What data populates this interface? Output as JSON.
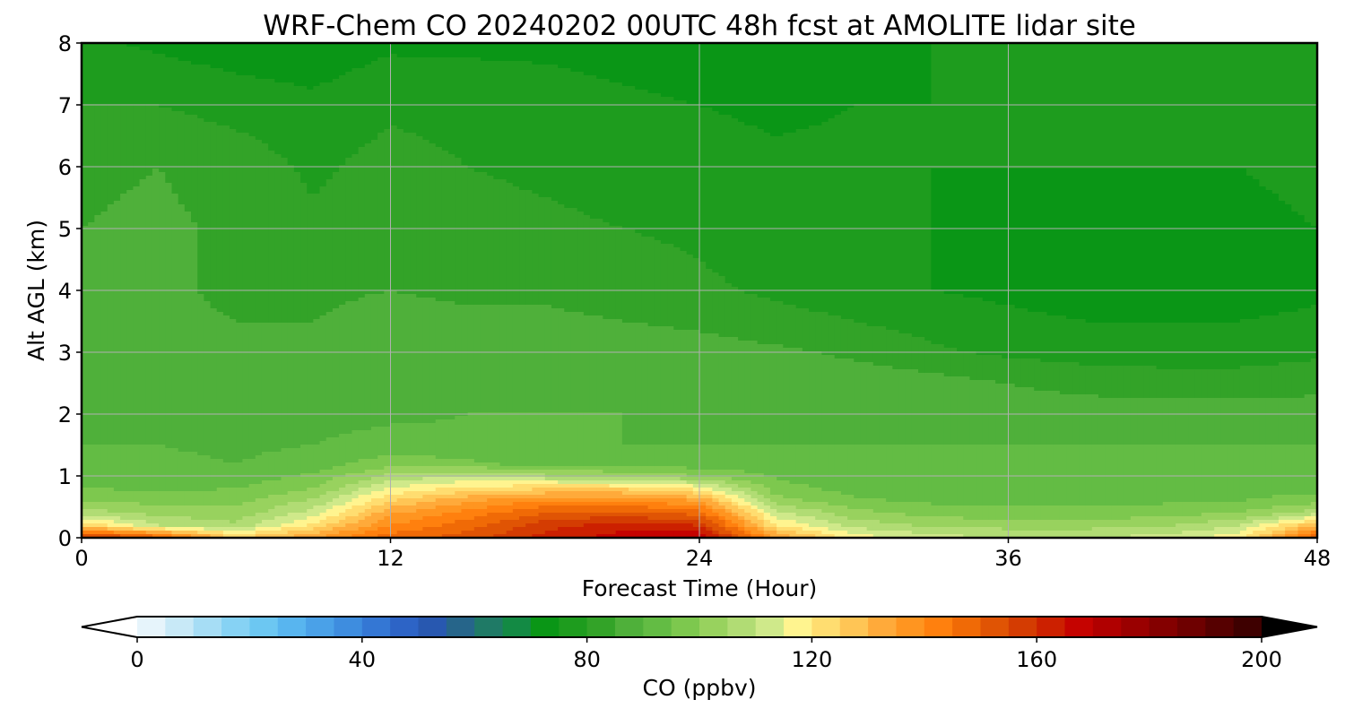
{
  "chart_data": {
    "type": "heatmap",
    "subtype": "filled-contour",
    "title": "WRF-Chem CO  20240202 00UTC 48h fcst at AMOLITE lidar site",
    "xlabel": "Forecast Time (Hour)",
    "ylabel": "Alt AGL (km)",
    "xlim": [
      0,
      48
    ],
    "ylim": [
      0,
      8
    ],
    "x_ticks": [
      0,
      12,
      24,
      36,
      48
    ],
    "y_ticks": [
      0,
      1,
      2,
      3,
      4,
      5,
      6,
      7,
      8
    ],
    "grid": true,
    "colorbar": {
      "label": "CO  (ppbv)",
      "orientation": "horizontal",
      "location": "bottom",
      "range": [
        0,
        200
      ],
      "ticks": [
        0,
        40,
        80,
        120,
        160,
        200
      ],
      "extend": "both",
      "levels_step": 5,
      "colors": [
        "#ffffff",
        "#e6f4fb",
        "#c8e9f7",
        "#a6ddf5",
        "#86d2f4",
        "#6cc7f2",
        "#58b5ef",
        "#4aa1e8",
        "#3e8ddf",
        "#3477d4",
        "#2d64c6",
        "#2858b0",
        "#26658a",
        "#1f7a66",
        "#138a44",
        "#0a9616",
        "#1e9c1e",
        "#33a328",
        "#4fb03a",
        "#63bc44",
        "#7dc84e",
        "#98d25e",
        "#b1dc74",
        "#cfe98a",
        "#fff48f",
        "#ffdd70",
        "#ffc555",
        "#ffaa3a",
        "#ff9520",
        "#ff800e",
        "#f06a06",
        "#e05404",
        "#d43c02",
        "#cc2000",
        "#c50300",
        "#b00000",
        "#9a0000",
        "#840000",
        "#6e0000",
        "#560000",
        "#3e0000",
        "#1e0000",
        "#000000"
      ]
    },
    "field_hour_axis": [
      0,
      3,
      6,
      9,
      12,
      15,
      18,
      21,
      24,
      27,
      30,
      33,
      36,
      39,
      42,
      45,
      48
    ],
    "field_alt_axis_km": [
      0.0,
      0.2,
      0.4,
      0.6,
      0.8,
      1.0,
      1.2,
      1.5,
      2.0,
      2.5,
      3.0,
      3.5,
      4.0,
      5.0,
      6.0,
      7.0,
      8.0
    ],
    "field_co_ppbv": [
      [
        160,
        150,
        125,
        135,
        148,
        152,
        162,
        168,
        170,
        135,
        118,
        112,
        110,
        110,
        112,
        118,
        150
      ],
      [
        125,
        110,
        106,
        122,
        140,
        148,
        158,
        162,
        160,
        120,
        108,
        104,
        103,
        103,
        104,
        110,
        130
      ],
      [
        108,
        103,
        102,
        112,
        134,
        142,
        150,
        152,
        148,
        112,
        102,
        98,
        97,
        97,
        98,
        100,
        108
      ],
      [
        100,
        98,
        98,
        106,
        125,
        134,
        140,
        140,
        135,
        102,
        96,
        94,
        93,
        93,
        94,
        95,
        98
      ],
      [
        95,
        94,
        95,
        100,
        115,
        122,
        124,
        124,
        118,
        97,
        93,
        92,
        91,
        91,
        92,
        92,
        93
      ],
      [
        92,
        92,
        92,
        96,
        106,
        110,
        106,
        104,
        100,
        94,
        92,
        91,
        91,
        90,
        91,
        91,
        91
      ],
      [
        91,
        91,
        90,
        92,
        98,
        96,
        92,
        92,
        92,
        92,
        91,
        91,
        90,
        90,
        90,
        90,
        90
      ],
      [
        90,
        90,
        89,
        90,
        92,
        91,
        90,
        90,
        90,
        90,
        90,
        90,
        90,
        90,
        90,
        90,
        90
      ],
      [
        89,
        88,
        87,
        88,
        89,
        90,
        90,
        90,
        89,
        89,
        89,
        88,
        88,
        88,
        88,
        88,
        88
      ],
      [
        88,
        88,
        86,
        87,
        89,
        89,
        89,
        89,
        89,
        89,
        88,
        87,
        85,
        83,
        82,
        82,
        83
      ],
      [
        88,
        87,
        86,
        86,
        88,
        88,
        88,
        88,
        87,
        86,
        84,
        81,
        79,
        78,
        78,
        78,
        79
      ],
      [
        87,
        86,
        85,
        85,
        87,
        86,
        86,
        85,
        84,
        82,
        80,
        78,
        76,
        75,
        75,
        75,
        76
      ],
      [
        86,
        86,
        84,
        84,
        85,
        84,
        84,
        83,
        81,
        79,
        77,
        75,
        74,
        73,
        73,
        73,
        74
      ],
      [
        85,
        86,
        84,
        81,
        84,
        82,
        81,
        80,
        79,
        77,
        76,
        75,
        74,
        74,
        74,
        74,
        75
      ],
      [
        84,
        85,
        83,
        79,
        82,
        80,
        79,
        78,
        77,
        76,
        76,
        75,
        75,
        75,
        75,
        75,
        76
      ],
      [
        80,
        80,
        78,
        76,
        79,
        78,
        77,
        76,
        75,
        74,
        75,
        75,
        75,
        75,
        75,
        75,
        76
      ],
      [
        76,
        74,
        72,
        72,
        74,
        74,
        74,
        73,
        72,
        72,
        74,
        75,
        75,
        75,
        75,
        76,
        76
      ]
    ]
  }
}
